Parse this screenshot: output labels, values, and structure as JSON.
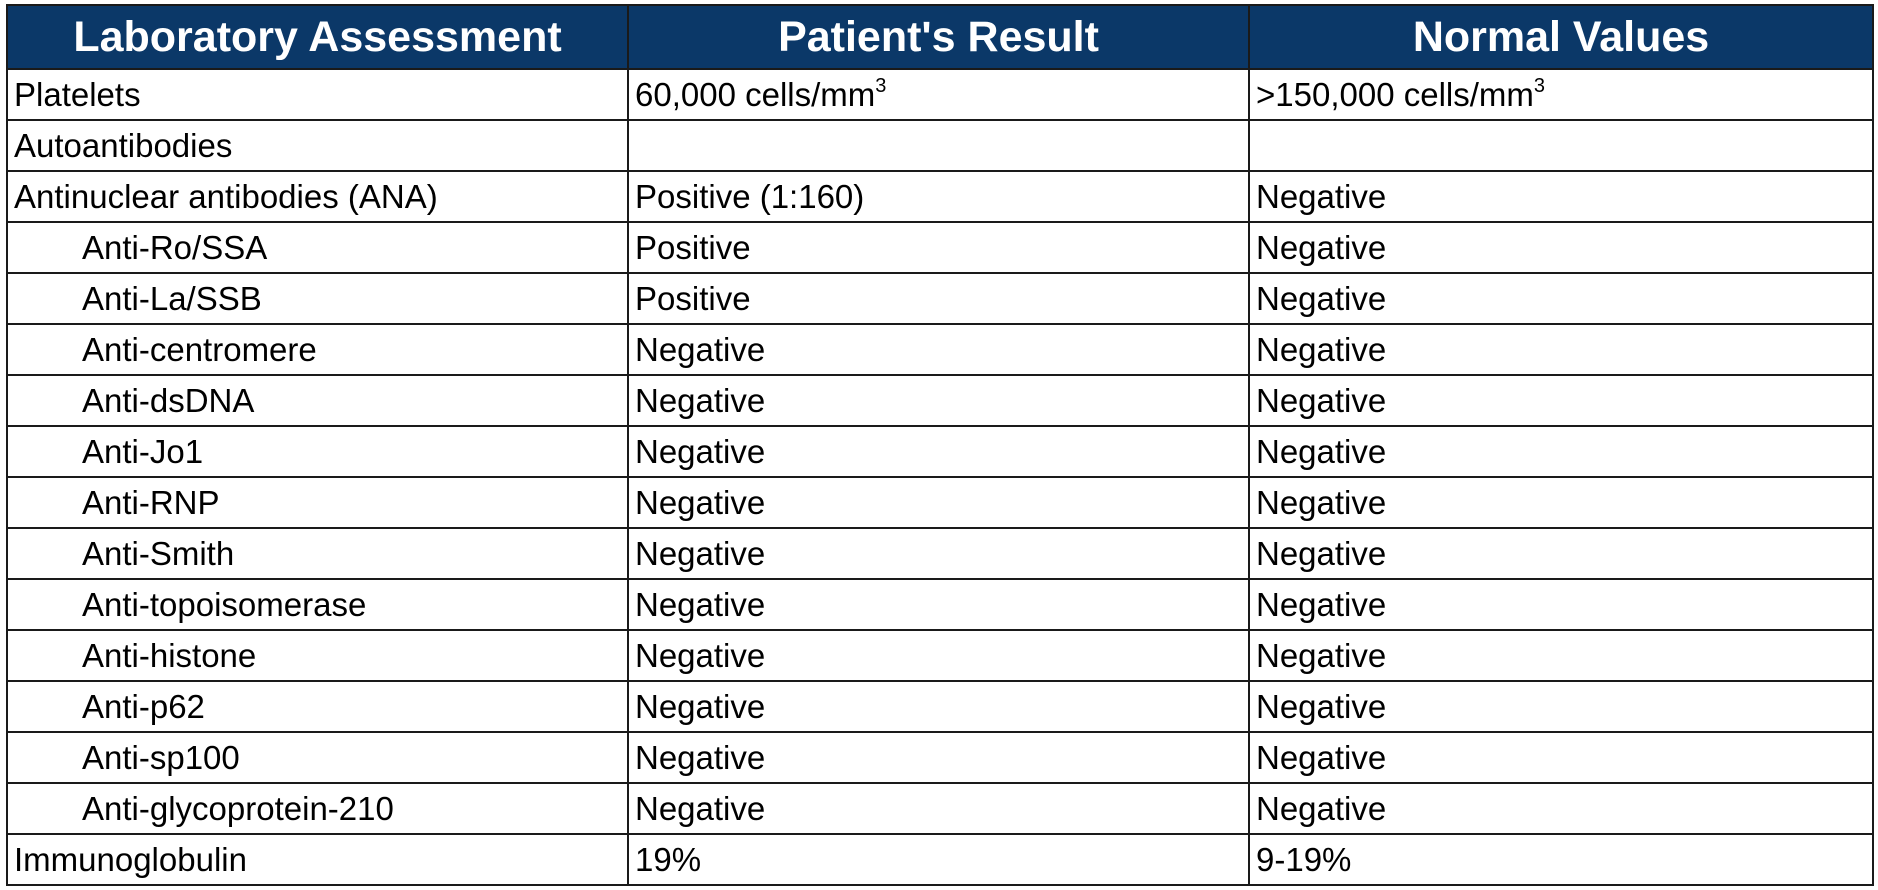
{
  "table": {
    "headers": [
      "Laboratory Assessment",
      "Patient's Result",
      "Normal Values"
    ],
    "rows": [
      {
        "test": "Platelets",
        "indent": false,
        "result": "60,000 cells/mm",
        "result_sup": "3",
        "normal": ">150,000 cells/mm",
        "normal_sup": "3"
      },
      {
        "test": "Autoantibodies",
        "indent": false,
        "result": "",
        "result_sup": "",
        "normal": "",
        "normal_sup": ""
      },
      {
        "test": "Antinuclear antibodies (ANA)",
        "indent": false,
        "result": "Positive (1:160)",
        "result_sup": "",
        "normal": "Negative",
        "normal_sup": ""
      },
      {
        "test": "Anti-Ro/SSA",
        "indent": true,
        "result": "Positive",
        "result_sup": "",
        "normal": "Negative",
        "normal_sup": ""
      },
      {
        "test": "Anti-La/SSB",
        "indent": true,
        "result": "Positive",
        "result_sup": "",
        "normal": "Negative",
        "normal_sup": ""
      },
      {
        "test": "Anti-centromere",
        "indent": true,
        "result": "Negative",
        "result_sup": "",
        "normal": "Negative",
        "normal_sup": ""
      },
      {
        "test": "Anti-dsDNA",
        "indent": true,
        "result": "Negative",
        "result_sup": "",
        "normal": "Negative",
        "normal_sup": ""
      },
      {
        "test": "Anti-Jo1",
        "indent": true,
        "result": "Negative",
        "result_sup": "",
        "normal": "Negative",
        "normal_sup": ""
      },
      {
        "test": "Anti-RNP",
        "indent": true,
        "result": "Negative",
        "result_sup": "",
        "normal": "Negative",
        "normal_sup": ""
      },
      {
        "test": "Anti-Smith",
        "indent": true,
        "result": "Negative",
        "result_sup": "",
        "normal": "Negative",
        "normal_sup": ""
      },
      {
        "test": "Anti-topoisomerase",
        "indent": true,
        "result": "Negative",
        "result_sup": "",
        "normal": "Negative",
        "normal_sup": ""
      },
      {
        "test": "Anti-histone",
        "indent": true,
        "result": "Negative",
        "result_sup": "",
        "normal": "Negative",
        "normal_sup": ""
      },
      {
        "test": "Anti-p62",
        "indent": true,
        "result": "Negative",
        "result_sup": "",
        "normal": "Negative",
        "normal_sup": ""
      },
      {
        "test": "Anti-sp100",
        "indent": true,
        "result": "Negative",
        "result_sup": "",
        "normal": "Negative",
        "normal_sup": ""
      },
      {
        "test": "Anti-glycoprotein-210",
        "indent": true,
        "result": "Negative",
        "result_sup": "",
        "normal": "Negative",
        "normal_sup": ""
      },
      {
        "test": "Immunoglobulin",
        "indent": false,
        "result": "19%",
        "result_sup": "",
        "normal": "9-19%",
        "normal_sup": ""
      }
    ]
  },
  "colors": {
    "header_background": "#0b3868",
    "header_text": "#ffffff",
    "border": "#1a1a1a"
  }
}
